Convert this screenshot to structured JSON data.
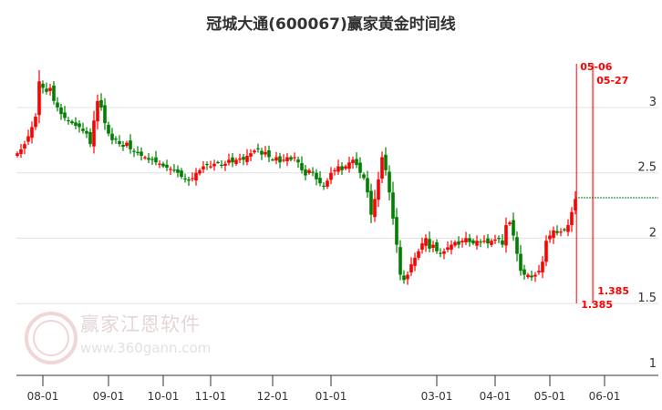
{
  "title": "冠城大通(600067)赢家黄金时间线",
  "watermark": {
    "name": "赢家江恩软件",
    "url": "www.360gann.com",
    "logo_chars": "江恩赢家"
  },
  "colors": {
    "up": "#ff0000",
    "down": "#008000",
    "marker": "#ff0000",
    "level_line": "#008000",
    "grid": "#e0e0e0"
  },
  "chart_data": {
    "type": "candlestick",
    "title": "冠城大通(600067)赢家黄金时间线",
    "ylim": [
      0.95,
      3.46
    ],
    "y_ticks": [
      {
        "v": 1,
        "label": "1"
      },
      {
        "v": 1.5,
        "label": "1.5"
      },
      {
        "v": 2,
        "label": "2"
      },
      {
        "v": 2.5,
        "label": "2.5"
      },
      {
        "v": 3,
        "label": "3"
      }
    ],
    "grid": true,
    "x_ticks": [
      {
        "index": 7,
        "label": "08-01"
      },
      {
        "index": 25,
        "label": "09-01"
      },
      {
        "index": 40,
        "label": "10-01"
      },
      {
        "index": 53,
        "label": "11-01"
      },
      {
        "index": 70,
        "label": "12-01"
      },
      {
        "index": 86,
        "label": "01-01"
      },
      {
        "index": 115,
        "label": "03-01"
      },
      {
        "index": 131,
        "label": "04-01"
      },
      {
        "index": 146,
        "label": "05-01"
      },
      {
        "index": 161,
        "label": "06-01"
      }
    ],
    "closes": [
      2.65,
      2.68,
      2.72,
      2.78,
      2.85,
      2.93,
      3.2,
      3.15,
      3.12,
      3.15,
      3.05,
      3.0,
      2.95,
      2.92,
      2.9,
      2.88,
      2.86,
      2.85,
      2.82,
      2.8,
      2.72,
      2.9,
      3.05,
      3.0,
      2.88,
      2.8,
      2.75,
      2.76,
      2.72,
      2.7,
      2.73,
      2.68,
      2.66,
      2.65,
      2.63,
      2.62,
      2.6,
      2.6,
      2.58,
      2.57,
      2.55,
      2.54,
      2.53,
      2.52,
      2.5,
      2.47,
      2.45,
      2.44,
      2.46,
      2.5,
      2.52,
      2.55,
      2.56,
      2.55,
      2.57,
      2.58,
      2.56,
      2.57,
      2.6,
      2.58,
      2.6,
      2.61,
      2.6,
      2.63,
      2.65,
      2.67,
      2.68,
      2.64,
      2.66,
      2.62,
      2.6,
      2.62,
      2.58,
      2.6,
      2.62,
      2.6,
      2.62,
      2.58,
      2.52,
      2.48,
      2.52,
      2.5,
      2.45,
      2.42,
      2.4,
      2.44,
      2.5,
      2.52,
      2.55,
      2.52,
      2.55,
      2.58,
      2.6,
      2.56,
      2.5,
      2.46,
      2.35,
      2.18,
      2.3,
      2.45,
      2.62,
      2.52,
      2.35,
      2.15,
      1.95,
      1.72,
      1.68,
      1.72,
      1.8,
      1.85,
      1.9,
      1.96,
      2.0,
      1.92,
      1.95,
      1.9,
      1.88,
      1.9,
      1.93,
      1.95,
      1.97,
      1.95,
      1.98,
      2.0,
      1.97,
      1.96,
      1.98,
      1.97,
      1.98,
      1.96,
      1.98,
      1.99,
      2.0,
      1.95,
      2.1,
      2.12,
      2.02,
      1.88,
      1.75,
      1.72,
      1.72,
      1.7,
      1.72,
      1.75,
      1.82,
      1.98,
      2.02,
      2.06,
      2.04,
      2.05,
      2.06,
      2.1,
      2.2,
      2.3
    ],
    "level_line": {
      "value": 2.31,
      "from_index": 153
    },
    "time_markers": [
      {
        "index": 153.3,
        "label": "05-06",
        "low_label": "1.385"
      },
      {
        "index": 157.8,
        "label": "05-27",
        "low_label": "1.385"
      }
    ]
  }
}
